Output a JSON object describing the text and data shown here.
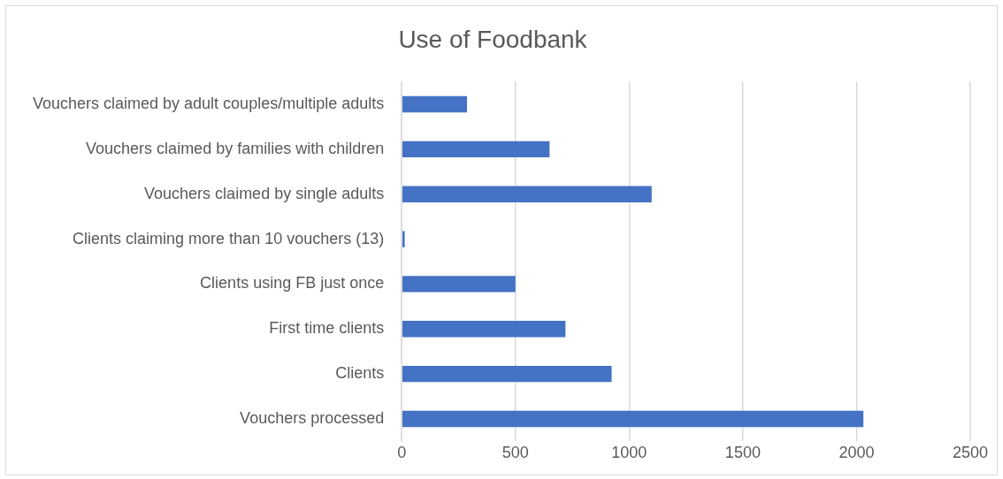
{
  "chart_data": {
    "type": "bar",
    "orientation": "horizontal",
    "title": "Use of Foodbank",
    "categories": [
      "Vouchers claimed by adult couples/multiple adults",
      "Vouchers claimed by families with children",
      "Vouchers claimed by single adults",
      "Clients claiming more than 10 vouchers (13)",
      "Clients using FB just once",
      "First time clients",
      "Clients",
      "Vouchers processed"
    ],
    "values": [
      287,
      650,
      1099,
      13,
      500,
      720,
      923,
      2030
    ],
    "color": "#4472c4",
    "xlim": [
      0,
      2500
    ],
    "xticks": [
      0,
      500,
      1000,
      1500,
      2000,
      2500
    ],
    "grid": "x",
    "legend": false
  }
}
